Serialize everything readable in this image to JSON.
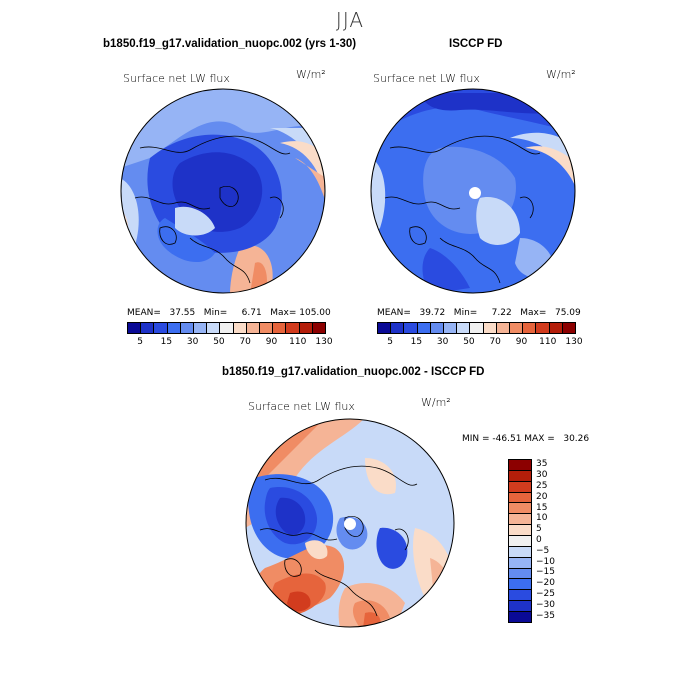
{
  "season": "JJA",
  "panels": {
    "top_left": {
      "title": "b1850.f19_g17.validation_nuopc.002 (yrs 1-30)",
      "variable": "Surface net LW flux",
      "units": "W/m²",
      "stats": "MEAN=   37.55   Min=     6.71   Max= 105.00"
    },
    "top_right": {
      "title": "ISCCP FD",
      "variable": "Surface net LW flux",
      "units": "W/m²",
      "stats": "MEAN=   39.72   Min=     7.22   Max=   75.09"
    },
    "bottom": {
      "title": "b1850.f19_g17.validation_nuopc.002 - ISCCP FD",
      "variable": "Surface net LW flux",
      "units": "W/m²",
      "stats": "MIN = -46.51 MAX =   30.26"
    }
  },
  "colorbars": {
    "absolute": {
      "colors": [
        "#0a0a96",
        "#1e32c8",
        "#2a4be0",
        "#3c6ef0",
        "#648cf0",
        "#96b4f5",
        "#c8daf8",
        "#f0f0f0",
        "#fadcc8",
        "#f5b496",
        "#f08c64",
        "#e6643c",
        "#d23c1e",
        "#b41e0a",
        "#8c0000"
      ],
      "labels": [
        "5",
        "15",
        "30",
        "50",
        "70",
        "90",
        "110",
        "130"
      ]
    },
    "difference": {
      "colors": [
        "#8c0000",
        "#b41e0a",
        "#d23c1e",
        "#e6643c",
        "#f08c64",
        "#f5b496",
        "#fadcc8",
        "#f0f0f0",
        "#c8daf8",
        "#96b4f5",
        "#648cf0",
        "#3c6ef0",
        "#2a4be0",
        "#1e32c8",
        "#0a0a96"
      ],
      "labels": [
        "35",
        "30",
        "25",
        "20",
        "15",
        "10",
        "5",
        "0",
        "−5",
        "−10",
        "−15",
        "−20",
        "−25",
        "−30",
        "−35"
      ]
    }
  },
  "map_colors": {
    "deep_blue": "#1e32c8",
    "blue": "#2a4be0",
    "mid_blue": "#3c6ef0",
    "light_blue": "#648cf0",
    "pale_blue": "#96b4f5",
    "very_pale_blue": "#c8daf8",
    "neutral": "#f0f0f0",
    "pale_orange": "#fadcc8",
    "light_orange": "#f5b496",
    "orange": "#f08c64",
    "red_orange": "#e6643c",
    "red": "#d23c1e",
    "dark_red": "#b41e0a"
  }
}
